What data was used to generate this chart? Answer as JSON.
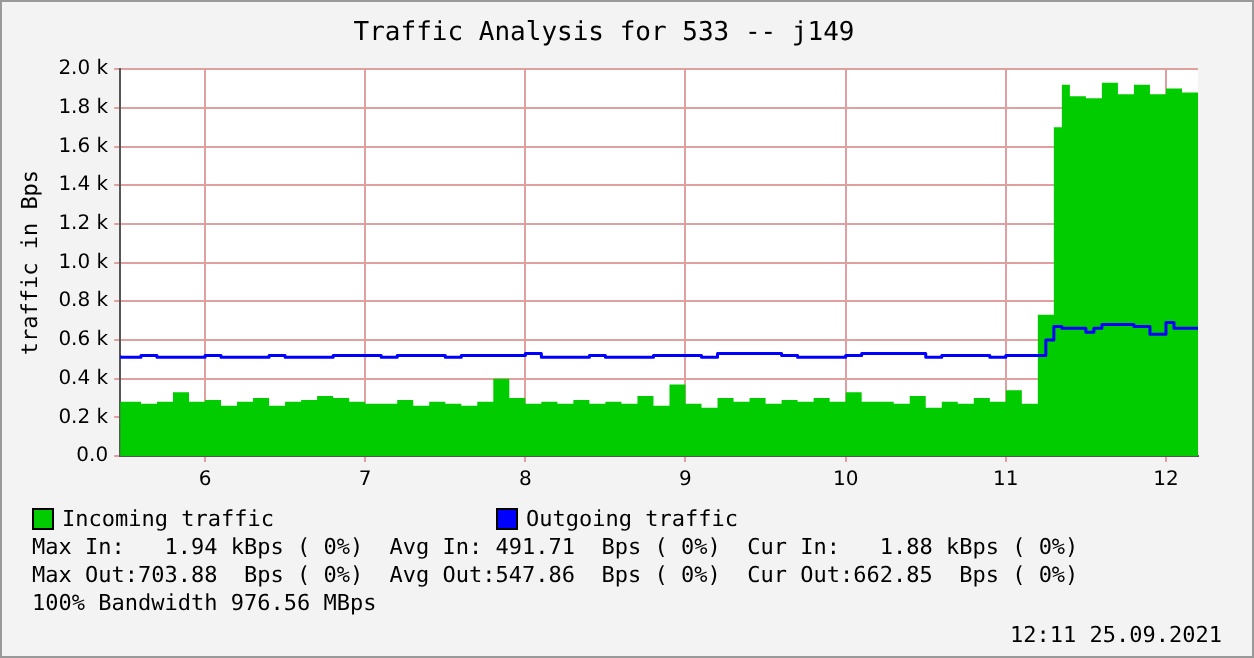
{
  "chart_data": {
    "type": "step",
    "title": "Traffic Analysis for 533 -- j149",
    "ylabel": "traffic in Bps",
    "xlim": [
      5.47,
      12.2
    ],
    "xticks": [
      6,
      7,
      8,
      9,
      10,
      11,
      12
    ],
    "ylim": [
      0,
      2000
    ],
    "yticks": [
      {
        "value": 0,
        "label": "0.0"
      },
      {
        "value": 200,
        "label": "0.2 k"
      },
      {
        "value": 400,
        "label": "0.4 k"
      },
      {
        "value": 600,
        "label": "0.6 k"
      },
      {
        "value": 800,
        "label": "0.8 k"
      },
      {
        "value": 1000,
        "label": "1.0 k"
      },
      {
        "value": 1200,
        "label": "1.2 k"
      },
      {
        "value": 1400,
        "label": "1.4 k"
      },
      {
        "value": 1600,
        "label": "1.6 k"
      },
      {
        "value": 1800,
        "label": "1.8 k"
      },
      {
        "value": 2000,
        "label": "2.0 k"
      }
    ],
    "grid": true,
    "legend": "bottom",
    "marker": "none",
    "series": [
      {
        "name": "Incoming traffic",
        "type": "area",
        "color": "#00cc00",
        "x": [
          5.47,
          5.6,
          5.7,
          5.8,
          5.9,
          6.0,
          6.1,
          6.2,
          6.3,
          6.4,
          6.5,
          6.6,
          6.7,
          6.8,
          6.9,
          7.0,
          7.1,
          7.2,
          7.3,
          7.4,
          7.5,
          7.6,
          7.7,
          7.8,
          7.9,
          8.0,
          8.1,
          8.2,
          8.3,
          8.4,
          8.5,
          8.6,
          8.7,
          8.8,
          8.9,
          9.0,
          9.1,
          9.2,
          9.3,
          9.4,
          9.5,
          9.6,
          9.7,
          9.8,
          9.9,
          10.0,
          10.1,
          10.2,
          10.3,
          10.4,
          10.5,
          10.6,
          10.7,
          10.8,
          10.9,
          11.0,
          11.1,
          11.2,
          11.3,
          11.35,
          11.4,
          11.5,
          11.6,
          11.7,
          11.8,
          11.9,
          12.0,
          12.1,
          12.2
        ],
        "values": [
          270,
          280,
          270,
          280,
          330,
          280,
          290,
          260,
          280,
          300,
          260,
          280,
          290,
          310,
          300,
          280,
          270,
          270,
          290,
          260,
          280,
          270,
          260,
          280,
          400,
          300,
          270,
          280,
          270,
          290,
          270,
          280,
          270,
          310,
          260,
          370,
          270,
          250,
          300,
          280,
          300,
          270,
          290,
          280,
          300,
          280,
          330,
          280,
          280,
          270,
          310,
          250,
          280,
          270,
          300,
          280,
          340,
          270,
          730,
          1700,
          1920,
          1860,
          1850,
          1930,
          1870,
          1920,
          1870,
          1900,
          1880
        ]
      },
      {
        "name": "Outgoing traffic",
        "color": "#0000ff",
        "x": [
          5.47,
          5.6,
          5.7,
          6.0,
          6.1,
          6.4,
          6.5,
          6.8,
          6.9,
          7.1,
          7.2,
          7.5,
          7.6,
          8.0,
          8.1,
          8.4,
          8.5,
          8.8,
          8.9,
          9.1,
          9.2,
          9.6,
          9.7,
          10.0,
          10.1,
          10.5,
          10.6,
          10.9,
          11.0,
          11.25,
          11.3,
          11.35,
          11.5,
          11.55,
          11.6,
          11.8,
          11.9,
          12.0,
          12.05,
          12.1,
          12.2
        ],
        "values": [
          520,
          510,
          520,
          510,
          520,
          510,
          520,
          510,
          520,
          520,
          510,
          520,
          510,
          520,
          530,
          510,
          520,
          510,
          520,
          520,
          510,
          530,
          520,
          510,
          520,
          530,
          510,
          520,
          510,
          520,
          600,
          670,
          660,
          640,
          660,
          680,
          670,
          630,
          690,
          660,
          660
        ]
      }
    ],
    "annotations": [
      "Max In:   1.94 kBps ( 0%)  Avg In: 491.71  Bps ( 0%)  Cur In:   1.88 kBps ( 0%)",
      "Max Out:703.88  Bps ( 0%)  Avg Out:547.86  Bps ( 0%)  Cur Out:662.85  Bps ( 0%)",
      "100% Bandwidth 976.56 MBps",
      "12:11 25.09.2021"
    ]
  }
}
